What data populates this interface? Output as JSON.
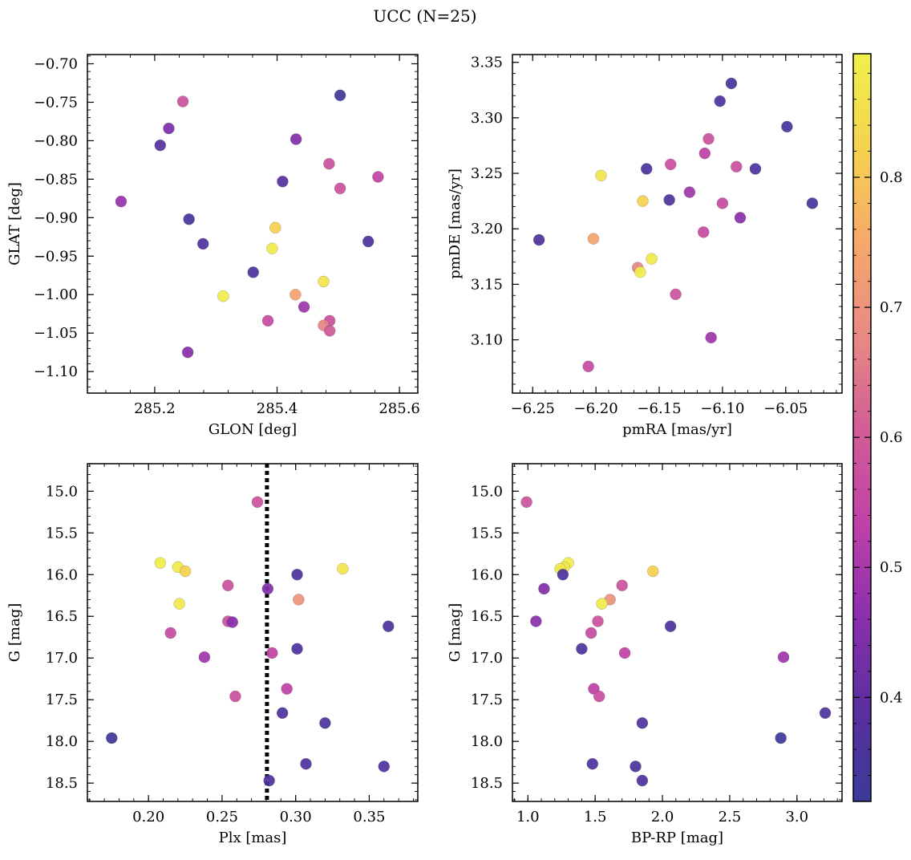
{
  "figure": {
    "suptitle": "UCC (N=25)"
  },
  "colormap": {
    "name": "plasma",
    "stops": [
      "#3a3a99",
      "#5b2f9f",
      "#8c2fae",
      "#c142a8",
      "#d15e96",
      "#e98a83",
      "#f7a96a",
      "#f5d34e",
      "#f0f04b"
    ],
    "vmin": 0.32,
    "vmax": 0.895,
    "ticks": [
      0.4,
      0.5,
      0.6,
      0.7,
      0.8
    ],
    "tick_labels": [
      "0.4",
      "0.5",
      "0.6",
      "0.7",
      "0.8"
    ]
  },
  "chart_data": [
    {
      "type": "scatter",
      "id": "glon-glat",
      "xlabel": "GLON [deg]",
      "ylabel": "GLAT [deg]",
      "xlim": [
        285.09,
        285.63
      ],
      "ylim": [
        -1.128,
        -0.688
      ],
      "xticks": [
        285.2,
        285.4,
        285.6
      ],
      "xtick_labels": [
        "285.2",
        "285.4",
        "285.6"
      ],
      "yticks": [
        -1.1,
        -1.05,
        -1.0,
        -0.95,
        -0.9,
        -0.85,
        -0.8,
        -0.75,
        -0.7
      ],
      "ytick_labels": [
        "−1.10",
        "−1.05",
        "−1.00",
        "−0.95",
        "−0.90",
        "−0.85",
        "−0.80",
        "−0.75",
        "−0.70"
      ],
      "points": [
        {
          "x": 285.503,
          "y": -0.741,
          "c": 0.33
        },
        {
          "x": 285.246,
          "y": -0.749,
          "c": 0.58
        },
        {
          "x": 285.223,
          "y": -0.784,
          "c": 0.44
        },
        {
          "x": 285.209,
          "y": -0.806,
          "c": 0.38
        },
        {
          "x": 285.431,
          "y": -0.798,
          "c": 0.45
        },
        {
          "x": 285.485,
          "y": -0.83,
          "c": 0.58
        },
        {
          "x": 285.565,
          "y": -0.847,
          "c": 0.54
        },
        {
          "x": 285.409,
          "y": -0.853,
          "c": 0.38
        },
        {
          "x": 285.503,
          "y": -0.862,
          "c": 0.58
        },
        {
          "x": 285.145,
          "y": -0.879,
          "c": 0.48
        },
        {
          "x": 285.256,
          "y": -0.902,
          "c": 0.35
        },
        {
          "x": 285.397,
          "y": -0.913,
          "c": 0.82
        },
        {
          "x": 285.279,
          "y": -0.934,
          "c": 0.36
        },
        {
          "x": 285.549,
          "y": -0.931,
          "c": 0.36
        },
        {
          "x": 285.392,
          "y": -0.94,
          "c": 0.88
        },
        {
          "x": 285.361,
          "y": -0.971,
          "c": 0.36
        },
        {
          "x": 285.476,
          "y": -0.983,
          "c": 0.87
        },
        {
          "x": 285.312,
          "y": -1.002,
          "c": 0.89
        },
        {
          "x": 285.43,
          "y": -1.0,
          "c": 0.74
        },
        {
          "x": 285.444,
          "y": -1.016,
          "c": 0.49
        },
        {
          "x": 285.385,
          "y": -1.034,
          "c": 0.56
        },
        {
          "x": 285.486,
          "y": -1.034,
          "c": 0.57
        },
        {
          "x": 285.476,
          "y": -1.04,
          "c": 0.67
        },
        {
          "x": 285.486,
          "y": -1.047,
          "c": 0.6
        },
        {
          "x": 285.254,
          "y": -1.075,
          "c": 0.46
        }
      ]
    },
    {
      "type": "scatter",
      "id": "pmra-pmde",
      "xlabel": "pmRA [mas/yr]",
      "ylabel": "pmDE [mas/yr]",
      "xlim": [
        -6.266,
        -6.0055
      ],
      "ylim": [
        3.052,
        3.357
      ],
      "xticks": [
        -6.25,
        -6.2,
        -6.15,
        -6.1,
        -6.05
      ],
      "xtick_labels": [
        "−6.25",
        "−6.20",
        "−6.15",
        "−6.10",
        "−6.05"
      ],
      "yticks": [
        3.1,
        3.15,
        3.2,
        3.25,
        3.3,
        3.35
      ],
      "ytick_labels": [
        "3.10",
        "3.15",
        "3.20",
        "3.25",
        "3.30",
        "3.35"
      ],
      "points": [
        {
          "x": -6.093,
          "y": 3.331,
          "c": 0.36
        },
        {
          "x": -6.102,
          "y": 3.315,
          "c": 0.36
        },
        {
          "x": -6.049,
          "y": 3.292,
          "c": 0.35
        },
        {
          "x": -6.111,
          "y": 3.281,
          "c": 0.58
        },
        {
          "x": -6.114,
          "y": 3.268,
          "c": 0.53
        },
        {
          "x": -6.141,
          "y": 3.258,
          "c": 0.57
        },
        {
          "x": -6.089,
          "y": 3.256,
          "c": 0.57
        },
        {
          "x": -6.16,
          "y": 3.254,
          "c": 0.36
        },
        {
          "x": -6.074,
          "y": 3.254,
          "c": 0.36
        },
        {
          "x": -6.196,
          "y": 3.248,
          "c": 0.87
        },
        {
          "x": -6.126,
          "y": 3.233,
          "c": 0.49
        },
        {
          "x": -6.142,
          "y": 3.226,
          "c": 0.36
        },
        {
          "x": -6.163,
          "y": 3.225,
          "c": 0.82
        },
        {
          "x": -6.1,
          "y": 3.223,
          "c": 0.56
        },
        {
          "x": -6.029,
          "y": 3.223,
          "c": 0.35
        },
        {
          "x": -6.086,
          "y": 3.21,
          "c": 0.46
        },
        {
          "x": -6.115,
          "y": 3.197,
          "c": 0.56
        },
        {
          "x": -6.202,
          "y": 3.191,
          "c": 0.74
        },
        {
          "x": -6.245,
          "y": 3.19,
          "c": 0.36
        },
        {
          "x": -6.156,
          "y": 3.173,
          "c": 0.88
        },
        {
          "x": -6.167,
          "y": 3.165,
          "c": 0.67
        },
        {
          "x": -6.165,
          "y": 3.161,
          "c": 0.89
        },
        {
          "x": -6.137,
          "y": 3.141,
          "c": 0.58
        },
        {
          "x": -6.109,
          "y": 3.102,
          "c": 0.49
        },
        {
          "x": -6.206,
          "y": 3.076,
          "c": 0.56
        }
      ]
    },
    {
      "type": "scatter",
      "id": "plx-g",
      "xlabel": "Plx [mas]",
      "ylabel": "G [mag]",
      "xlim": [
        0.1585,
        0.383
      ],
      "ylim": [
        18.72,
        14.67
      ],
      "y_inverted": true,
      "xticks": [
        0.2,
        0.25,
        0.3,
        0.35
      ],
      "xtick_labels": [
        "0.20",
        "0.25",
        "0.30",
        "0.35"
      ],
      "yticks": [
        15.0,
        15.5,
        16.0,
        16.5,
        17.0,
        17.5,
        18.0,
        18.5
      ],
      "ytick_labels": [
        "15.0",
        "15.5",
        "16.0",
        "16.5",
        "17.0",
        "17.5",
        "18.0",
        "18.5"
      ],
      "vline": {
        "x": 0.2805,
        "style": "dotted",
        "color": "#000000"
      },
      "points": [
        {
          "x": 0.274,
          "y": 15.13,
          "c": 0.58
        },
        {
          "x": 0.208,
          "y": 15.86,
          "c": 0.89
        },
        {
          "x": 0.22,
          "y": 15.91,
          "c": 0.88
        },
        {
          "x": 0.225,
          "y": 15.96,
          "c": 0.82
        },
        {
          "x": 0.332,
          "y": 15.93,
          "c": 0.87
        },
        {
          "x": 0.301,
          "y": 16.0,
          "c": 0.36
        },
        {
          "x": 0.254,
          "y": 16.13,
          "c": 0.58
        },
        {
          "x": 0.281,
          "y": 16.17,
          "c": 0.45
        },
        {
          "x": 0.302,
          "y": 16.3,
          "c": 0.7
        },
        {
          "x": 0.221,
          "y": 16.35,
          "c": 0.88
        },
        {
          "x": 0.254,
          "y": 16.56,
          "c": 0.58
        },
        {
          "x": 0.257,
          "y": 16.57,
          "c": 0.46
        },
        {
          "x": 0.363,
          "y": 16.62,
          "c": 0.36
        },
        {
          "x": 0.215,
          "y": 16.7,
          "c": 0.56
        },
        {
          "x": 0.301,
          "y": 16.89,
          "c": 0.36
        },
        {
          "x": 0.284,
          "y": 16.94,
          "c": 0.54
        },
        {
          "x": 0.238,
          "y": 16.99,
          "c": 0.49
        },
        {
          "x": 0.294,
          "y": 17.37,
          "c": 0.53
        },
        {
          "x": 0.259,
          "y": 17.46,
          "c": 0.57
        },
        {
          "x": 0.291,
          "y": 17.66,
          "c": 0.36
        },
        {
          "x": 0.32,
          "y": 17.78,
          "c": 0.36
        },
        {
          "x": 0.175,
          "y": 17.96,
          "c": 0.33
        },
        {
          "x": 0.307,
          "y": 18.27,
          "c": 0.36
        },
        {
          "x": 0.36,
          "y": 18.3,
          "c": 0.36
        },
        {
          "x": 0.282,
          "y": 18.47,
          "c": 0.36
        }
      ]
    },
    {
      "type": "scatter",
      "id": "bprp-g",
      "xlabel": "BP-RP [mag]",
      "ylabel": "G [mag]",
      "xlim": [
        0.885,
        3.335
      ],
      "ylim": [
        18.72,
        14.67
      ],
      "y_inverted": true,
      "xticks": [
        1.0,
        1.5,
        2.0,
        2.5,
        3.0
      ],
      "xtick_labels": [
        "1.0",
        "1.5",
        "2.0",
        "2.5",
        "3.0"
      ],
      "yticks": [
        15.0,
        15.5,
        16.0,
        16.5,
        17.0,
        17.5,
        18.0,
        18.5
      ],
      "ytick_labels": [
        "15.0",
        "15.5",
        "16.0",
        "16.5",
        "17.0",
        "17.5",
        "18.0",
        "18.5"
      ],
      "points": [
        {
          "x": 0.99,
          "y": 15.13,
          "c": 0.58
        },
        {
          "x": 1.3,
          "y": 15.86,
          "c": 0.89
        },
        {
          "x": 1.27,
          "y": 15.91,
          "c": 0.88
        },
        {
          "x": 1.24,
          "y": 15.93,
          "c": 0.87
        },
        {
          "x": 1.26,
          "y": 16.0,
          "c": 0.36
        },
        {
          "x": 1.93,
          "y": 15.96,
          "c": 0.82
        },
        {
          "x": 1.7,
          "y": 16.13,
          "c": 0.58
        },
        {
          "x": 1.12,
          "y": 16.17,
          "c": 0.45
        },
        {
          "x": 1.61,
          "y": 16.3,
          "c": 0.7
        },
        {
          "x": 1.55,
          "y": 16.35,
          "c": 0.88
        },
        {
          "x": 1.06,
          "y": 16.56,
          "c": 0.46
        },
        {
          "x": 1.52,
          "y": 16.56,
          "c": 0.58
        },
        {
          "x": 2.06,
          "y": 16.62,
          "c": 0.36
        },
        {
          "x": 1.47,
          "y": 16.7,
          "c": 0.56
        },
        {
          "x": 1.4,
          "y": 16.89,
          "c": 0.36
        },
        {
          "x": 1.72,
          "y": 16.94,
          "c": 0.54
        },
        {
          "x": 2.9,
          "y": 16.99,
          "c": 0.49
        },
        {
          "x": 1.49,
          "y": 17.37,
          "c": 0.53
        },
        {
          "x": 1.53,
          "y": 17.46,
          "c": 0.57
        },
        {
          "x": 3.21,
          "y": 17.66,
          "c": 0.36
        },
        {
          "x": 1.85,
          "y": 17.78,
          "c": 0.36
        },
        {
          "x": 2.88,
          "y": 17.96,
          "c": 0.33
        },
        {
          "x": 1.48,
          "y": 18.27,
          "c": 0.36
        },
        {
          "x": 1.8,
          "y": 18.3,
          "c": 0.36
        },
        {
          "x": 1.85,
          "y": 18.47,
          "c": 0.36
        }
      ]
    }
  ]
}
